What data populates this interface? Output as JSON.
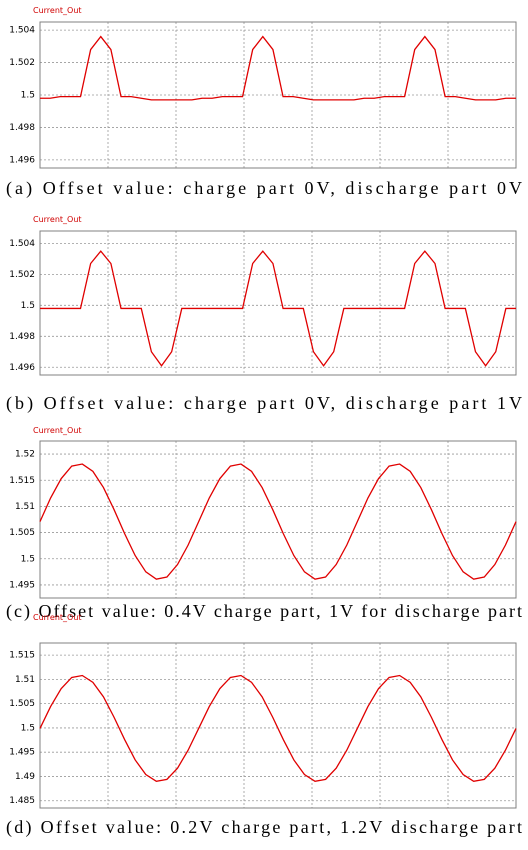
{
  "chart_data": [
    {
      "type": "line",
      "title": "Current_Out",
      "caption": "(a) Offset value: charge part 0V, discharge part 0V",
      "color": "#e00000",
      "grid": true,
      "ylim": [
        1.4955,
        1.5045
      ],
      "yticks": [
        1.496,
        1.498,
        1.5,
        1.502,
        1.504
      ],
      "values": [
        1.4998,
        1.4998,
        1.4999,
        1.4999,
        1.4999,
        1.5028,
        1.5036,
        1.5028,
        1.4999,
        1.4999,
        1.4998,
        1.4997,
        1.4997,
        1.4997,
        1.4997,
        1.4997,
        1.4998,
        1.4998,
        1.4999,
        1.4999,
        1.4999,
        1.5028,
        1.5036,
        1.5028,
        1.4999,
        1.4999,
        1.4998,
        1.4997,
        1.4997,
        1.4997,
        1.4997,
        1.4997,
        1.4998,
        1.4998,
        1.4999,
        1.4999,
        1.4999,
        1.5028,
        1.5036,
        1.5028,
        1.4999,
        1.4999,
        1.4998,
        1.4997,
        1.4997,
        1.4997,
        1.4998,
        1.4998
      ]
    },
    {
      "type": "line",
      "title": "Current_Out",
      "caption": "(b) Offset value: charge part 0V, discharge part 1V",
      "color": "#e00000",
      "grid": true,
      "ylim": [
        1.4955,
        1.5048
      ],
      "yticks": [
        1.496,
        1.498,
        1.5,
        1.502,
        1.504
      ],
      "values": [
        1.4998,
        1.4998,
        1.4998,
        1.4998,
        1.4998,
        1.5027,
        1.5035,
        1.5027,
        1.4998,
        1.4998,
        1.4998,
        1.497,
        1.4961,
        1.497,
        1.4998,
        1.4998,
        1.4998,
        1.4998,
        1.4998,
        1.4998,
        1.4998,
        1.5027,
        1.5035,
        1.5027,
        1.4998,
        1.4998,
        1.4998,
        1.497,
        1.4961,
        1.497,
        1.4998,
        1.4998,
        1.4998,
        1.4998,
        1.4998,
        1.4998,
        1.4998,
        1.5027,
        1.5035,
        1.5027,
        1.4998,
        1.4998,
        1.4998,
        1.497,
        1.4961,
        1.497,
        1.4998,
        1.4998
      ]
    },
    {
      "type": "line",
      "title": "Current_Out",
      "caption": "(c) Offset value: 0.4V charge part, 1V for discharge part",
      "color": "#e00000",
      "grid": true,
      "ylim": [
        1.4925,
        1.5225
      ],
      "yticks": [
        1.495,
        1.5,
        1.505,
        1.51,
        1.515,
        1.52
      ],
      "values": [
        1.5071,
        1.5116,
        1.5153,
        1.5177,
        1.5181,
        1.5167,
        1.5136,
        1.5094,
        1.5048,
        1.5006,
        1.4975,
        1.4961,
        1.4965,
        1.4989,
        1.5026,
        1.5071,
        1.5116,
        1.5153,
        1.5177,
        1.5181,
        1.5167,
        1.5136,
        1.5094,
        1.5048,
        1.5006,
        1.4975,
        1.4961,
        1.4965,
        1.4989,
        1.5026,
        1.5071,
        1.5116,
        1.5153,
        1.5177,
        1.5181,
        1.5167,
        1.5136,
        1.5094,
        1.5048,
        1.5006,
        1.4975,
        1.4961,
        1.4965,
        1.4989,
        1.5026,
        1.5071
      ]
    },
    {
      "type": "line",
      "title": "Current_Out",
      "caption": "(d) Offset value: 0.2V charge part, 1.2V discharge part",
      "color": "#e00000",
      "grid": true,
      "ylim": [
        1.4835,
        1.5175
      ],
      "yticks": [
        1.485,
        1.49,
        1.495,
        1.5,
        1.505,
        1.51,
        1.515
      ],
      "values": [
        1.4999,
        1.5044,
        1.5081,
        1.5104,
        1.5108,
        1.5094,
        1.5064,
        1.5022,
        1.4976,
        1.4934,
        1.4904,
        1.489,
        1.4894,
        1.4917,
        1.4954,
        1.4999,
        1.5044,
        1.5081,
        1.5104,
        1.5108,
        1.5094,
        1.5064,
        1.5022,
        1.4976,
        1.4934,
        1.4904,
        1.489,
        1.4894,
        1.4917,
        1.4954,
        1.4999,
        1.5044,
        1.5081,
        1.5104,
        1.5108,
        1.5094,
        1.5064,
        1.5022,
        1.4976,
        1.4934,
        1.4904,
        1.489,
        1.4894,
        1.4917,
        1.4954,
        1.4999
      ]
    }
  ]
}
